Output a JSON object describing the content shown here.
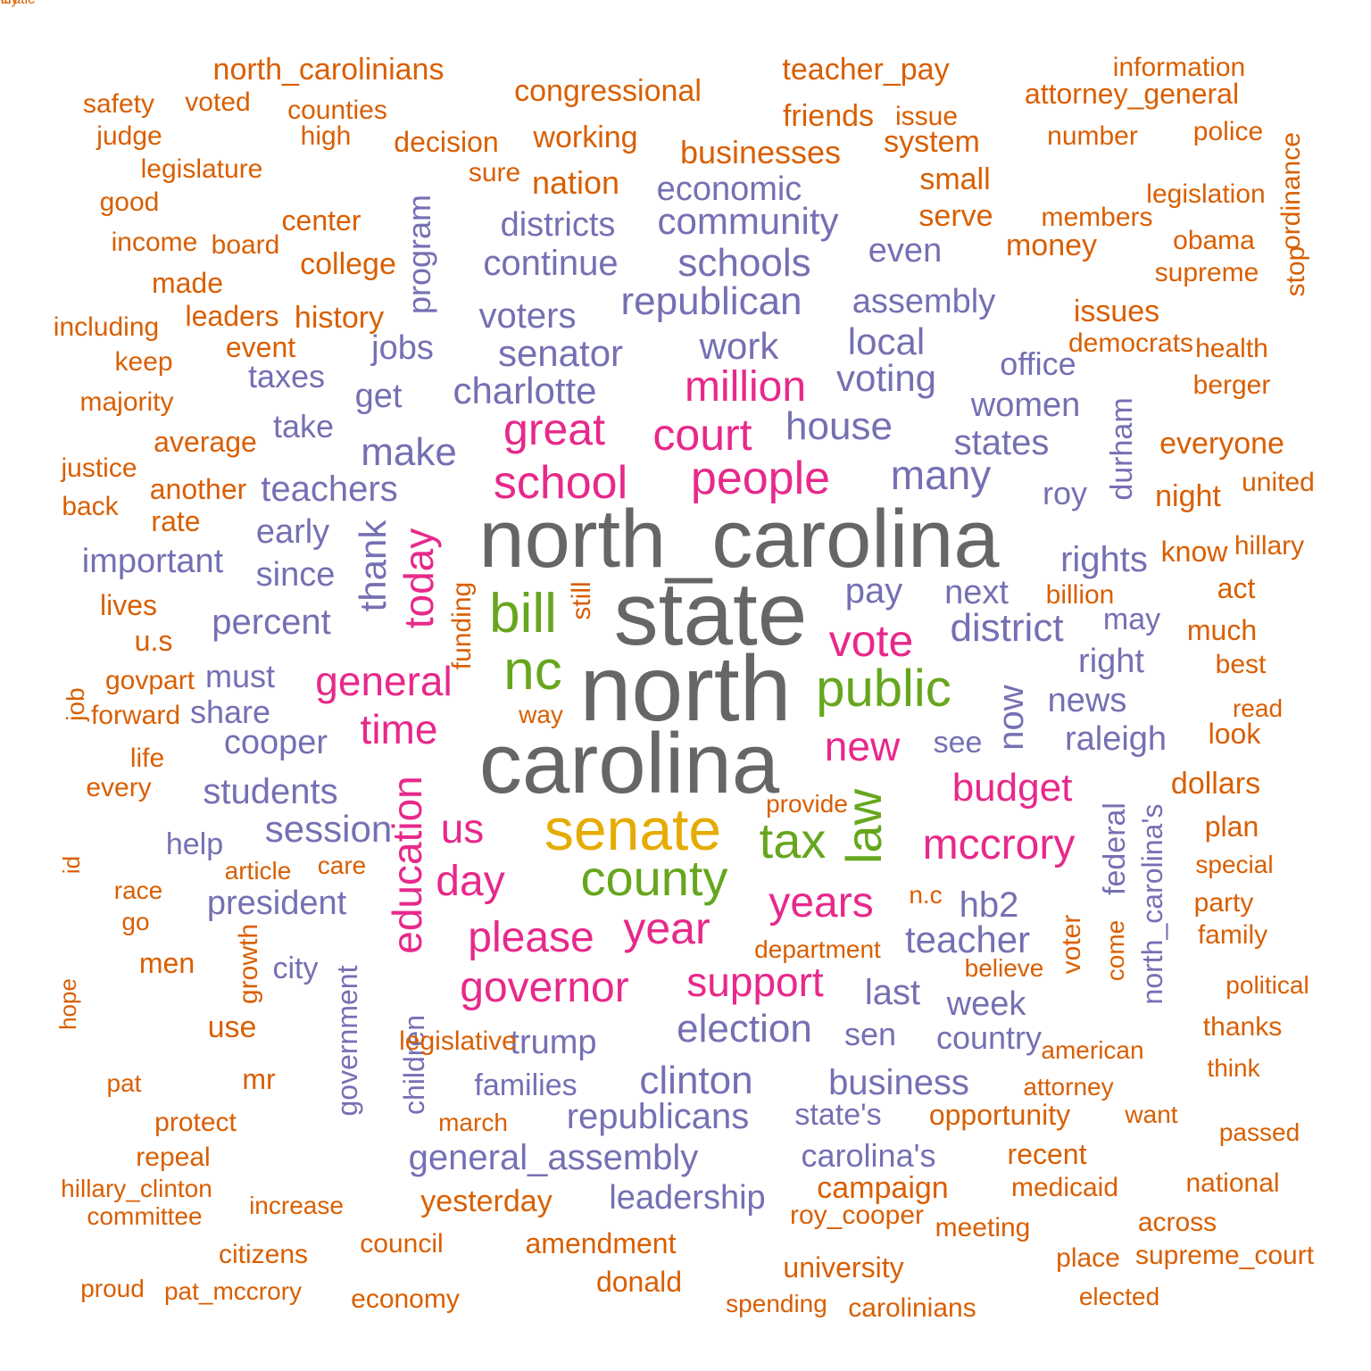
{
  "colors": {
    "gray": "#666666",
    "purple": "#7570b3",
    "magenta": "#e7298a",
    "green": "#66a61e",
    "gold": "#e6ab02",
    "orange": "#d95f02"
  },
  "words": [
    {
      "text": "north_carolina",
      "color": "gray"
    },
    {
      "text": "state",
      "color": "gray"
    },
    {
      "text": "north",
      "color": "gray"
    },
    {
      "text": "carolina",
      "color": "gray"
    },
    {
      "text": "senate",
      "color": "gold"
    },
    {
      "text": "bill",
      "color": "green"
    },
    {
      "text": "nc",
      "color": "green"
    },
    {
      "text": "public",
      "color": "green"
    },
    {
      "text": "county",
      "color": "green"
    },
    {
      "text": "tax",
      "color": "green"
    },
    {
      "text": "law",
      "color": "green"
    },
    {
      "text": "people",
      "color": "magenta"
    },
    {
      "text": "school",
      "color": "magenta"
    },
    {
      "text": "great",
      "color": "magenta"
    },
    {
      "text": "court",
      "color": "magenta"
    },
    {
      "text": "million",
      "color": "magenta"
    },
    {
      "text": "today",
      "color": "magenta"
    },
    {
      "text": "vote",
      "color": "magenta"
    },
    {
      "text": "general",
      "color": "magenta"
    },
    {
      "text": "time",
      "color": "magenta"
    },
    {
      "text": "new",
      "color": "magenta"
    },
    {
      "text": "budget",
      "color": "magenta"
    },
    {
      "text": "mccrory",
      "color": "magenta"
    },
    {
      "text": "us",
      "color": "magenta"
    },
    {
      "text": "day",
      "color": "magenta"
    },
    {
      "text": "years",
      "color": "magenta"
    },
    {
      "text": "education",
      "color": "magenta"
    },
    {
      "text": "please",
      "color": "magenta"
    },
    {
      "text": "year",
      "color": "magenta"
    },
    {
      "text": "governor",
      "color": "magenta"
    },
    {
      "text": "support",
      "color": "magenta"
    },
    {
      "text": "many",
      "color": "purple"
    },
    {
      "text": "house",
      "color": "purple"
    },
    {
      "text": "make",
      "color": "purple"
    },
    {
      "text": "teachers",
      "color": "purple"
    },
    {
      "text": "senator",
      "color": "purple"
    },
    {
      "text": "charlotte",
      "color": "purple"
    },
    {
      "text": "republican",
      "color": "purple"
    },
    {
      "text": "work",
      "color": "purple"
    },
    {
      "text": "voting",
      "color": "purple"
    },
    {
      "text": "local",
      "color": "purple"
    },
    {
      "text": "schools",
      "color": "purple"
    },
    {
      "text": "community",
      "color": "purple"
    },
    {
      "text": "continue",
      "color": "purple"
    },
    {
      "text": "districts",
      "color": "purple"
    },
    {
      "text": "economic",
      "color": "purple"
    },
    {
      "text": "voters",
      "color": "purple"
    },
    {
      "text": "assembly",
      "color": "purple"
    },
    {
      "text": "even",
      "color": "purple"
    },
    {
      "text": "program",
      "color": "purple"
    },
    {
      "text": "jobs",
      "color": "purple"
    },
    {
      "text": "taxes",
      "color": "purple"
    },
    {
      "text": "get",
      "color": "purple"
    },
    {
      "text": "take",
      "color": "purple"
    },
    {
      "text": "office",
      "color": "purple"
    },
    {
      "text": "women",
      "color": "purple"
    },
    {
      "text": "states",
      "color": "purple"
    },
    {
      "text": "durham",
      "color": "purple"
    },
    {
      "text": "roy",
      "color": "purple"
    },
    {
      "text": "rights",
      "color": "purple"
    },
    {
      "text": "thank",
      "color": "purple"
    },
    {
      "text": "early",
      "color": "purple"
    },
    {
      "text": "important",
      "color": "purple"
    },
    {
      "text": "since",
      "color": "purple"
    },
    {
      "text": "percent",
      "color": "purple"
    },
    {
      "text": "pay",
      "color": "purple"
    },
    {
      "text": "next",
      "color": "purple"
    },
    {
      "text": "district",
      "color": "purple"
    },
    {
      "text": "may",
      "color": "purple"
    },
    {
      "text": "right",
      "color": "purple"
    },
    {
      "text": "must",
      "color": "purple"
    },
    {
      "text": "share",
      "color": "purple"
    },
    {
      "text": "cooper",
      "color": "purple"
    },
    {
      "text": "now",
      "color": "purple"
    },
    {
      "text": "news",
      "color": "purple"
    },
    {
      "text": "see",
      "color": "purple"
    },
    {
      "text": "raleigh",
      "color": "purple"
    },
    {
      "text": "students",
      "color": "purple"
    },
    {
      "text": "help",
      "color": "purple"
    },
    {
      "text": "session",
      "color": "purple"
    },
    {
      "text": "federal",
      "color": "purple"
    },
    {
      "text": "north_carolina's",
      "color": "purple"
    },
    {
      "text": "hb2",
      "color": "purple"
    },
    {
      "text": "president",
      "color": "purple"
    },
    {
      "text": "teacher",
      "color": "purple"
    },
    {
      "text": "city",
      "color": "purple"
    },
    {
      "text": "government",
      "color": "purple"
    },
    {
      "text": "last",
      "color": "purple"
    },
    {
      "text": "week",
      "color": "purple"
    },
    {
      "text": "election",
      "color": "purple"
    },
    {
      "text": "sen",
      "color": "purple"
    },
    {
      "text": "country",
      "color": "purple"
    },
    {
      "text": "trump",
      "color": "purple"
    },
    {
      "text": "children",
      "color": "purple"
    },
    {
      "text": "clinton",
      "color": "purple"
    },
    {
      "text": "business",
      "color": "purple"
    },
    {
      "text": "families",
      "color": "purple"
    },
    {
      "text": "republicans",
      "color": "purple"
    },
    {
      "text": "state's",
      "color": "purple"
    },
    {
      "text": "general_assembly",
      "color": "purple"
    },
    {
      "text": "carolina's",
      "color": "purple"
    },
    {
      "text": "leadership",
      "color": "purple"
    },
    {
      "text": "north_carolinians",
      "color": "orange"
    },
    {
      "text": "teacher_pay",
      "color": "orange"
    },
    {
      "text": "information",
      "color": "orange"
    },
    {
      "text": "ordinance",
      "color": "orange"
    },
    {
      "text": "congressional",
      "color": "orange"
    },
    {
      "text": "attorney_general",
      "color": "orange"
    },
    {
      "text": "safety",
      "color": "orange"
    },
    {
      "text": "voted",
      "color": "orange"
    },
    {
      "text": "counties",
      "color": "orange"
    },
    {
      "text": "friends",
      "color": "orange"
    },
    {
      "text": "issue",
      "color": "orange"
    },
    {
      "text": "judge",
      "color": "orange"
    },
    {
      "text": "high",
      "color": "orange"
    },
    {
      "text": "decision",
      "color": "orange"
    },
    {
      "text": "working",
      "color": "orange"
    },
    {
      "text": "system",
      "color": "orange"
    },
    {
      "text": "number",
      "color": "orange"
    },
    {
      "text": "police",
      "color": "orange"
    },
    {
      "text": "businesses",
      "color": "orange"
    },
    {
      "text": "legislature",
      "color": "orange"
    },
    {
      "text": "sure",
      "color": "orange"
    },
    {
      "text": "nation",
      "color": "orange"
    },
    {
      "text": "small",
      "color": "orange"
    },
    {
      "text": "good",
      "color": "orange"
    },
    {
      "text": "legislation",
      "color": "orange"
    },
    {
      "text": "center",
      "color": "orange"
    },
    {
      "text": "serve",
      "color": "orange"
    },
    {
      "text": "members",
      "color": "orange"
    },
    {
      "text": "income",
      "color": "orange"
    },
    {
      "text": "board",
      "color": "orange"
    },
    {
      "text": "obama",
      "color": "orange"
    },
    {
      "text": "stop",
      "color": "orange"
    },
    {
      "text": "college",
      "color": "orange"
    },
    {
      "text": "money",
      "color": "orange"
    },
    {
      "text": "made",
      "color": "orange"
    },
    {
      "text": "supreme",
      "color": "orange"
    },
    {
      "text": "including",
      "color": "orange"
    },
    {
      "text": "leaders",
      "color": "orange"
    },
    {
      "text": "history",
      "color": "orange"
    },
    {
      "text": "issues",
      "color": "orange"
    },
    {
      "text": "event",
      "color": "orange"
    },
    {
      "text": "democrats",
      "color": "orange"
    },
    {
      "text": "health",
      "color": "orange"
    },
    {
      "text": "keep",
      "color": "orange"
    },
    {
      "text": "berger",
      "color": "orange"
    },
    {
      "text": "majority",
      "color": "orange"
    },
    {
      "text": "average",
      "color": "orange"
    },
    {
      "text": "everyone",
      "color": "orange"
    },
    {
      "text": "justice",
      "color": "orange"
    },
    {
      "text": "another",
      "color": "orange"
    },
    {
      "text": "united",
      "color": "orange"
    },
    {
      "text": "back",
      "color": "orange"
    },
    {
      "text": "night",
      "color": "orange"
    },
    {
      "text": "rate",
      "color": "orange"
    },
    {
      "text": "know",
      "color": "orange"
    },
    {
      "text": "hillary",
      "color": "orange"
    },
    {
      "text": "still",
      "color": "orange"
    },
    {
      "text": "billion",
      "color": "orange"
    },
    {
      "text": "act",
      "color": "orange"
    },
    {
      "text": "lives",
      "color": "orange"
    },
    {
      "text": "funding",
      "color": "orange"
    },
    {
      "text": "much",
      "color": "orange"
    },
    {
      "text": "u.s",
      "color": "orange"
    },
    {
      "text": "best",
      "color": "orange"
    },
    {
      "text": "job",
      "color": "orange"
    },
    {
      "text": "govpart",
      "color": "orange"
    },
    {
      "text": "forward",
      "color": "orange"
    },
    {
      "text": "read",
      "color": "orange"
    },
    {
      "text": "way",
      "color": "orange"
    },
    {
      "text": "look",
      "color": "orange"
    },
    {
      "text": "life",
      "color": "orange"
    },
    {
      "text": "every",
      "color": "orange"
    },
    {
      "text": "dollars",
      "color": "orange"
    },
    {
      "text": "provide",
      "color": "orange"
    },
    {
      "text": "plan",
      "color": "orange"
    },
    {
      "text": "id",
      "color": "orange"
    },
    {
      "text": "special",
      "color": "orange"
    },
    {
      "text": "article",
      "color": "orange"
    },
    {
      "text": "care",
      "color": "orange"
    },
    {
      "text": "race",
      "color": "orange"
    },
    {
      "text": "n.c",
      "color": "orange"
    },
    {
      "text": "party",
      "color": "orange"
    },
    {
      "text": "go",
      "color": "orange"
    },
    {
      "text": "voter",
      "color": "orange"
    },
    {
      "text": "come",
      "color": "orange"
    },
    {
      "text": "family",
      "color": "orange"
    },
    {
      "text": "hope",
      "color": "orange"
    },
    {
      "text": "growth",
      "color": "orange"
    },
    {
      "text": "department",
      "color": "orange"
    },
    {
      "text": "men",
      "color": "orange"
    },
    {
      "text": "believe",
      "color": "orange"
    },
    {
      "text": "political",
      "color": "orange"
    },
    {
      "text": "use",
      "color": "orange"
    },
    {
      "text": "thanks",
      "color": "orange"
    },
    {
      "text": "legislative",
      "color": "orange"
    },
    {
      "text": "american",
      "color": "orange"
    },
    {
      "text": "pat",
      "color": "orange"
    },
    {
      "text": "mr",
      "color": "orange"
    },
    {
      "text": "think",
      "color": "orange"
    },
    {
      "text": "attorney",
      "color": "orange"
    },
    {
      "text": "protect",
      "color": "orange"
    },
    {
      "text": "march",
      "color": "orange"
    },
    {
      "text": "opportunity",
      "color": "orange"
    },
    {
      "text": "want",
      "color": "orange"
    },
    {
      "text": "passed",
      "color": "orange"
    },
    {
      "text": "repeal",
      "color": "orange"
    },
    {
      "text": "recent",
      "color": "orange"
    },
    {
      "text": "hillary_clinton",
      "color": "orange"
    },
    {
      "text": "campaign",
      "color": "orange"
    },
    {
      "text": "medicaid",
      "color": "orange"
    },
    {
      "text": "national",
      "color": "orange"
    },
    {
      "text": "increase",
      "color": "orange"
    },
    {
      "text": "yesterday",
      "color": "orange"
    },
    {
      "text": "committee",
      "color": "orange"
    },
    {
      "text": "roy_cooper",
      "color": "orange"
    },
    {
      "text": "meeting",
      "color": "orange"
    },
    {
      "text": "across",
      "color": "orange"
    },
    {
      "text": "citizens",
      "color": "orange"
    },
    {
      "text": "council",
      "color": "orange"
    },
    {
      "text": "amendment",
      "color": "orange"
    },
    {
      "text": "place",
      "color": "orange"
    },
    {
      "text": "supreme_court",
      "color": "orange"
    },
    {
      "text": "university",
      "color": "orange"
    },
    {
      "text": "proud",
      "color": "orange"
    },
    {
      "text": "pat_mccrory",
      "color": "orange"
    },
    {
      "text": "donald",
      "color": "orange"
    },
    {
      "text": "elected",
      "color": "orange"
    },
    {
      "text": "economy",
      "color": "orange"
    },
    {
      "text": "spending",
      "color": "orange"
    },
    {
      "text": "carolinians",
      "color": "orange"
    },
    {
      "text": "policy",
      "color": "orange"
    },
    {
      "text": "democratic",
      "color": "orange"
    }
  ]
}
